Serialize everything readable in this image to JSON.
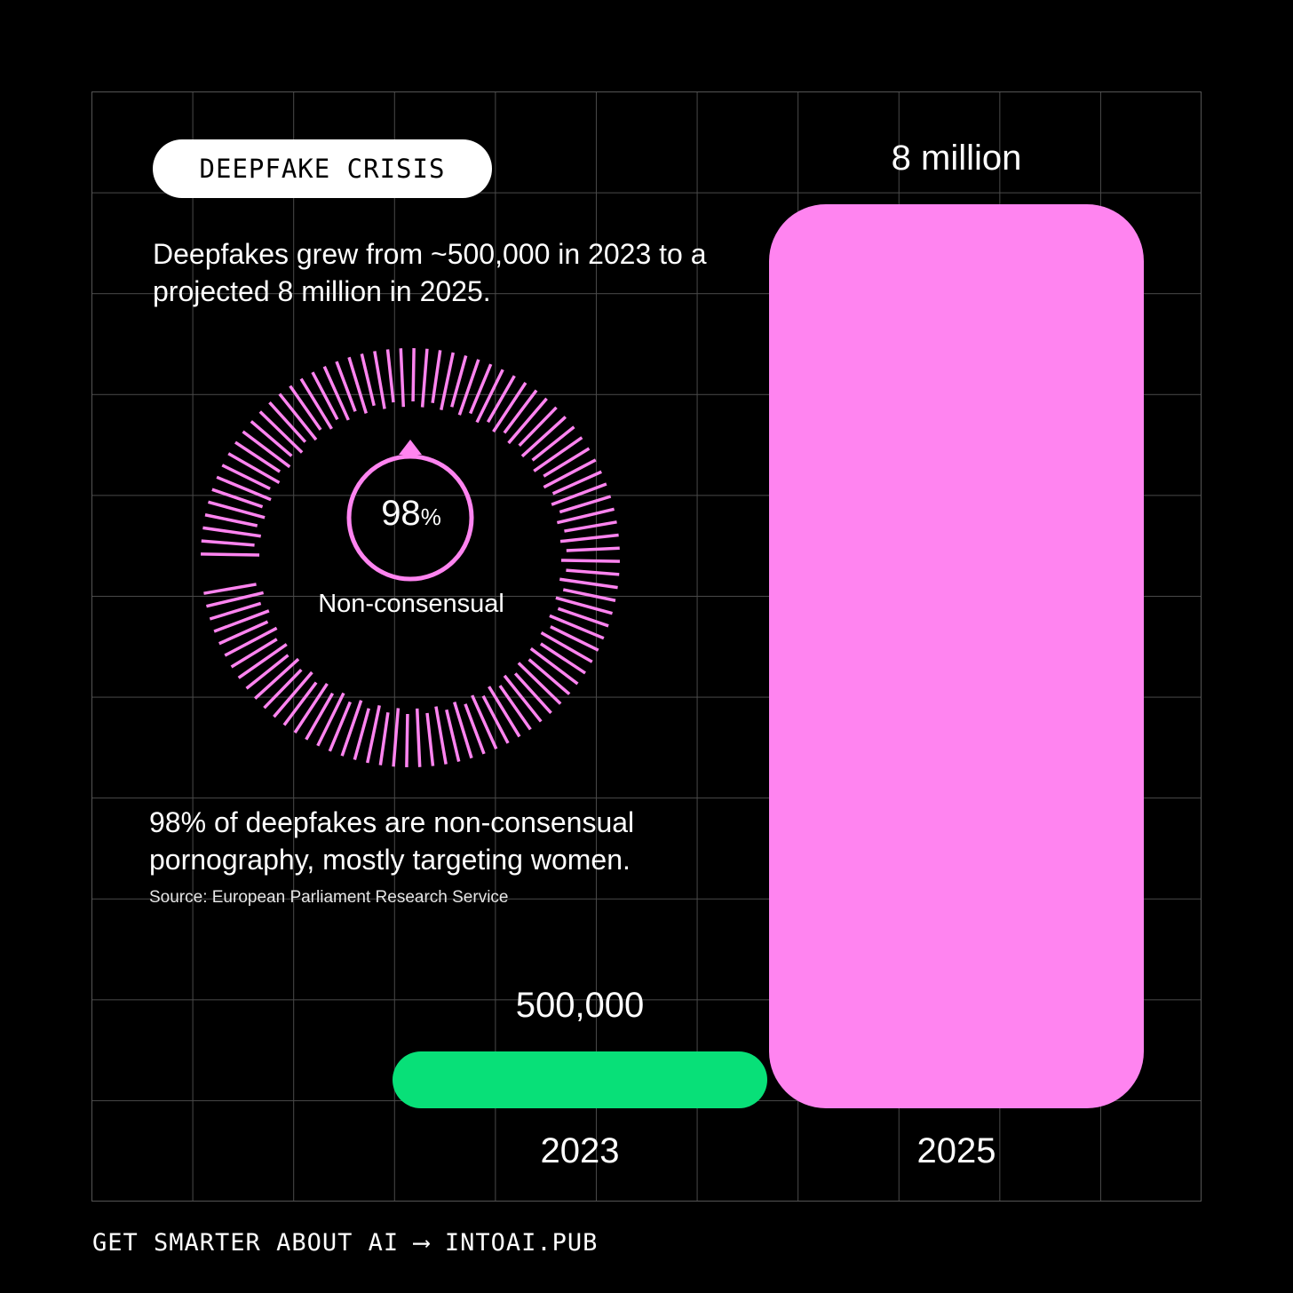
{
  "badge": "DEEPFAKE CRISIS",
  "intro": "Deepfakes grew from ~500,000 in 2023 to a projected 8 million in 2025.",
  "gauge": {
    "value": "98",
    "unit": "%",
    "label": "Non-consensual",
    "fraction": 0.98,
    "color": "#ff84f0"
  },
  "note": "98% of deepfakes are non-consensual pornography, mostly targeting women.",
  "source": "Source: European Parliament Research Service",
  "footer": "GET SMARTER ABOUT AI ⟶ INTOAI.PUB",
  "chart_data": {
    "type": "bar",
    "categories": [
      "2023",
      "2025"
    ],
    "values": [
      500000,
      8000000
    ],
    "value_labels": [
      "500,000",
      "8 million"
    ],
    "colors": [
      "#08e078",
      "#ff84f0"
    ],
    "grid": true
  }
}
